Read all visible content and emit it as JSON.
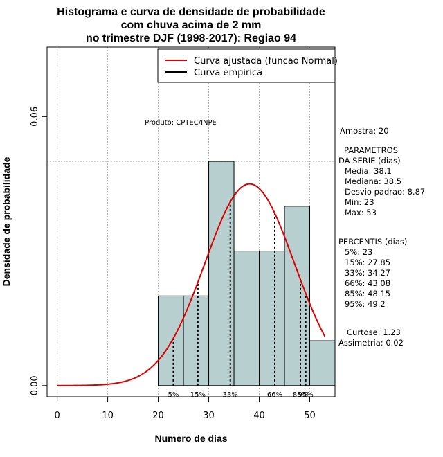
{
  "chart_data": {
    "type": "bar",
    "title_lines": [
      "Histograma e curva de densidade de probabilidade",
      "com chuva acima de 2 mm",
      "no trimestre DJF (1998-2017): Regiao 94"
    ],
    "xlabel": "Numero de dias",
    "ylabel": "Densidade de probabilidade",
    "xlim": [
      -2,
      55
    ],
    "ylim": [
      -0.0025,
      0.0755
    ],
    "x_ticks": [
      "0",
      "10",
      "20",
      "30",
      "40",
      "50"
    ],
    "y_ticks": [
      "0.00",
      "0.06"
    ],
    "reference_line_y": 0.05,
    "bins": [
      {
        "start": 20,
        "end": 25,
        "density": 0.02
      },
      {
        "start": 25,
        "end": 30,
        "density": 0.02
      },
      {
        "start": 30,
        "end": 35,
        "density": 0.05
      },
      {
        "start": 35,
        "end": 40,
        "density": 0.03
      },
      {
        "start": 40,
        "end": 45,
        "density": 0.03
      },
      {
        "start": 45,
        "end": 50,
        "density": 0.04
      },
      {
        "start": 50,
        "end": 55,
        "density": 0.01
      }
    ],
    "normal_fit": {
      "mean": 38.1,
      "sd": 8.87,
      "x_from": 0,
      "x_to": 53
    },
    "percentile_marks": [
      {
        "label": "5%",
        "x": 23
      },
      {
        "label": "15%",
        "x": 27.85
      },
      {
        "label": "33%",
        "x": 34.27
      },
      {
        "label": "66%",
        "x": 43.08
      },
      {
        "label": "85%",
        "x": 48.15
      },
      {
        "label": "95%",
        "x": 49.2
      }
    ],
    "legend": {
      "position": "top-right",
      "entries": [
        {
          "label": "Curva ajustada (funcao Normal)",
          "color": "#dd0000"
        },
        {
          "label": "Curva empirica",
          "color": "#000000"
        }
      ]
    },
    "annotation": "Produto: CPTEC/INPE",
    "colors": {
      "bar_fill": "#b7cfce",
      "curve": "#dd0000",
      "grid": "#b0b0b0"
    }
  },
  "side_panel": {
    "amostra": "Amostra: 20",
    "param_title_1": "PARAMETROS",
    "param_title_2": "DA SERIE (dias)",
    "params": [
      "Media: 38.1",
      "Mediana: 38.5",
      "Desvio padrao: 8.87",
      "Min: 23",
      "Max: 53"
    ],
    "percentis_title": "PERCENTIS (dias)",
    "percentis": [
      "5%: 23",
      "15%: 27.85",
      "33%: 34.27",
      "66%: 43.08",
      "85%: 48.15",
      "95%: 49.2"
    ],
    "curtose": "Curtose: 1.23",
    "assimetria": "Assimetria: 0.02"
  }
}
